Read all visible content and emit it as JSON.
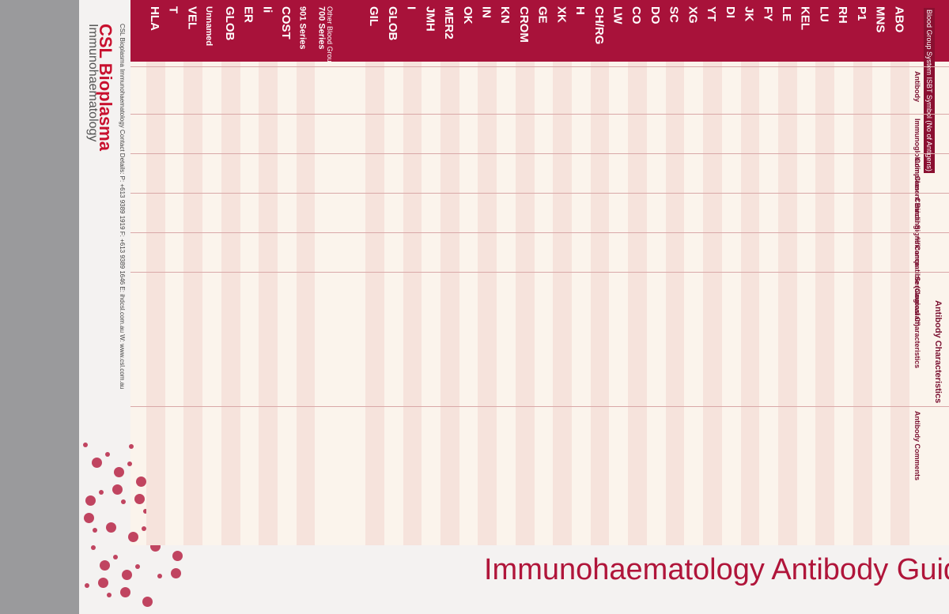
{
  "header": {
    "brand": "CSL Bioplasma",
    "subtitle": "Immunohaematology",
    "title": "Immunohaematology Antibody Guide",
    "contact": "CSL Bioplasma Immunohaematology Contact Details:  P: +613 9389 1919  F: +613 9389 1646  E: ihdcsl.com.au  W: www.csl.com.au"
  },
  "table": {
    "system_header": "Blood Group System ISBT Symbol (No of Antigens)",
    "section": "Antibody Characteristics",
    "other_header": "Other Blood Group Systems, Collections and Associated Antigens",
    "columns": [
      "Antibody",
      "Immunoglobulin Class",
      "Complement Binding",
      "Clinical Significance",
      "% Compatible (Caucasian)",
      "Serological Characteristics",
      "Antibody Comments"
    ],
    "systems": [
      "HLA",
      "T",
      "VEL",
      "Unnamed",
      "GLOB",
      "ER",
      "Ii",
      "COST",
      "901 Series",
      "700 Series",
      "GIL",
      "GLOB",
      "I",
      "JMH",
      "MER2",
      "OK",
      "IN",
      "KN",
      "CROM",
      "GE",
      "XK",
      "H",
      "CH/RG",
      "LW",
      "CO",
      "DO",
      "SC",
      "XG",
      "YT",
      "DI",
      "JK",
      "FY",
      "LE",
      "KEL",
      "LU",
      "RH",
      "P1",
      "MNS",
      "ABO"
    ]
  }
}
